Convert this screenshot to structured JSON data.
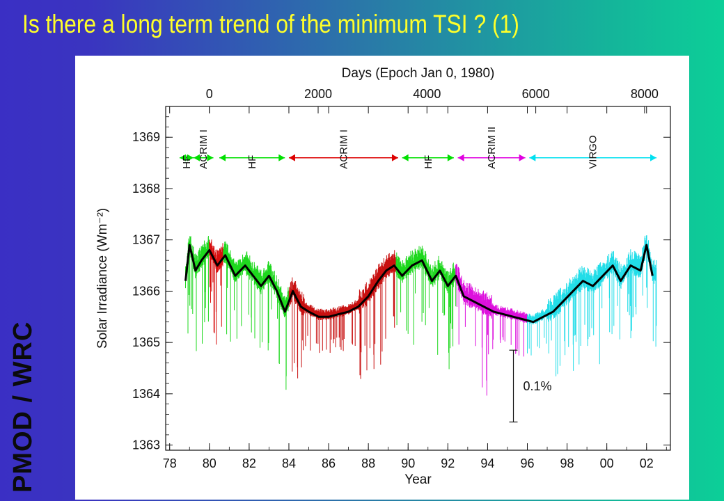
{
  "slide": {
    "title": "Is there a long term trend of the minimum TSI ?  (1)",
    "side_label": "PMOD / WRC"
  },
  "chart_data": {
    "type": "line",
    "title": "",
    "xlabel": "Year",
    "ylabel": "Solar Irradiance (Wm⁻²)",
    "x2label": "Days (Epoch Jan 0, 1980)",
    "xlim": [
      1977.8,
      2003.2
    ],
    "ylim": [
      1362.9,
      1369.6
    ],
    "x_ticks": [
      1978,
      1980,
      1982,
      1984,
      1986,
      1988,
      1990,
      1992,
      1994,
      1996,
      1998,
      2000,
      2002
    ],
    "x_tick_labels": [
      "78",
      "80",
      "82",
      "84",
      "86",
      "88",
      "90",
      "92",
      "94",
      "96",
      "98",
      "00",
      "02"
    ],
    "y_ticks": [
      1363,
      1364,
      1365,
      1366,
      1367,
      1368,
      1369
    ],
    "y_tick_labels": [
      "1363",
      "1364",
      "1365",
      "1366",
      "1367",
      "1368",
      "1369"
    ],
    "x2_ticks": [
      0,
      2000,
      4000,
      6000,
      8000
    ],
    "x2_tick_labels": [
      "0",
      "2000",
      "4000",
      "6000",
      "8000"
    ],
    "scale_bar": {
      "label": "0.1%",
      "y_from": 1363.45,
      "y_to": 1364.85,
      "x": 1995.3
    },
    "instruments": [
      {
        "name": "HF",
        "from": 1978.5,
        "to": 1979.2,
        "color": "#00e000"
      },
      {
        "name": "ACRIM I",
        "from": 1979.2,
        "to": 1980.2,
        "color": "#00e000"
      },
      {
        "name": "HF",
        "from": 1980.5,
        "to": 1983.8,
        "color": "#00e000"
      },
      {
        "name": "ACRIM I",
        "from": 1984.0,
        "to": 1989.5,
        "color": "#dd0000"
      },
      {
        "name": "HF",
        "from": 1989.7,
        "to": 1992.3,
        "color": "#00e000"
      },
      {
        "name": "ACRIM II",
        "from": 1992.5,
        "to": 1995.9,
        "color": "#e000e0"
      },
      {
        "name": "VIRGO",
        "from": 1996.1,
        "to": 2002.5,
        "color": "#00e0f0"
      }
    ],
    "daily_segments": [
      {
        "instrument": "HF",
        "color": "#1ed81e",
        "from": 1978.8,
        "to": 1980.0
      },
      {
        "instrument": "ACRIM I",
        "color": "#d81010",
        "from": 1980.0,
        "to": 1980.7
      },
      {
        "instrument": "HF",
        "color": "#1ed81e",
        "from": 1980.7,
        "to": 1984.0
      },
      {
        "instrument": "ACRIM I",
        "color": "#c81010",
        "from": 1984.0,
        "to": 1989.4
      },
      {
        "instrument": "HF",
        "color": "#1ed81e",
        "from": 1989.4,
        "to": 1992.4
      },
      {
        "instrument": "ACRIM II",
        "color": "#dd10dd",
        "from": 1992.4,
        "to": 1996.0
      },
      {
        "instrument": "VIRGO",
        "color": "#22dde8",
        "from": 1996.0,
        "to": 2002.5
      }
    ],
    "series": [
      {
        "name": "",
        "color": "#000000",
        "points": [
          [
            1978.8,
            1366.2
          ],
          [
            1979.0,
            1366.9
          ],
          [
            1979.3,
            1366.4
          ],
          [
            1979.6,
            1366.6
          ],
          [
            1980.0,
            1366.8
          ],
          [
            1980.4,
            1366.5
          ],
          [
            1980.8,
            1366.7
          ],
          [
            1981.3,
            1366.3
          ],
          [
            1981.8,
            1366.5
          ],
          [
            1982.2,
            1366.3
          ],
          [
            1982.6,
            1366.1
          ],
          [
            1983.0,
            1366.3
          ],
          [
            1983.4,
            1366.0
          ],
          [
            1983.8,
            1365.6
          ],
          [
            1984.2,
            1366.0
          ],
          [
            1984.6,
            1365.7
          ],
          [
            1985.0,
            1365.6
          ],
          [
            1985.5,
            1365.5
          ],
          [
            1986.0,
            1365.5
          ],
          [
            1986.5,
            1365.55
          ],
          [
            1987.0,
            1365.6
          ],
          [
            1987.5,
            1365.7
          ],
          [
            1988.0,
            1365.9
          ],
          [
            1988.5,
            1366.2
          ],
          [
            1988.9,
            1366.4
          ],
          [
            1989.3,
            1366.5
          ],
          [
            1989.7,
            1366.3
          ],
          [
            1990.2,
            1366.5
          ],
          [
            1990.7,
            1366.6
          ],
          [
            1991.2,
            1366.2
          ],
          [
            1991.6,
            1366.4
          ],
          [
            1992.0,
            1366.1
          ],
          [
            1992.4,
            1366.3
          ],
          [
            1992.8,
            1365.9
          ],
          [
            1993.3,
            1365.8
          ],
          [
            1993.8,
            1365.7
          ],
          [
            1994.3,
            1365.6
          ],
          [
            1994.8,
            1365.55
          ],
          [
            1995.3,
            1365.5
          ],
          [
            1995.8,
            1365.45
          ],
          [
            1996.3,
            1365.4
          ],
          [
            1996.8,
            1365.5
          ],
          [
            1997.3,
            1365.6
          ],
          [
            1997.8,
            1365.8
          ],
          [
            1998.3,
            1366.0
          ],
          [
            1998.8,
            1366.2
          ],
          [
            1999.3,
            1366.1
          ],
          [
            1999.8,
            1366.3
          ],
          [
            2000.3,
            1366.5
          ],
          [
            2000.7,
            1366.2
          ],
          [
            2001.2,
            1366.5
          ],
          [
            2001.7,
            1366.4
          ],
          [
            2002.0,
            1366.9
          ],
          [
            2002.3,
            1366.3
          ]
        ]
      }
    ]
  }
}
